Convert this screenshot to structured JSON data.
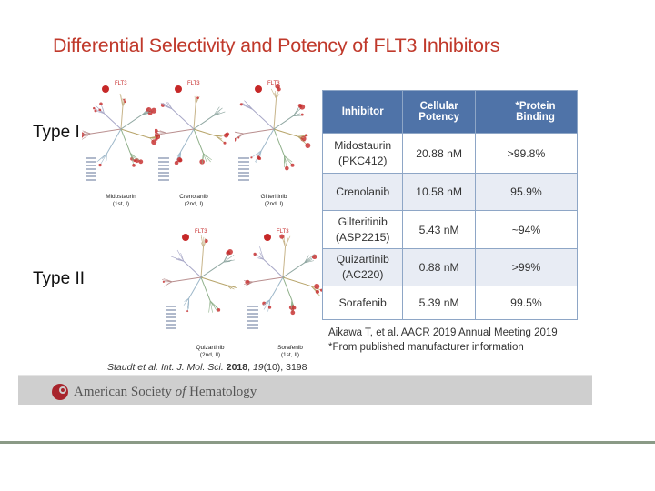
{
  "title": "Differential Selectivity and Potency of FLT3 Inhibitors",
  "type_labels": {
    "type1": "Type I",
    "type2": "Type II"
  },
  "trees": [
    {
      "label": "FLT3",
      "name": "Midostaurin",
      "class": "(1st, I)"
    },
    {
      "label": "FLT3",
      "name": "Crenolanib",
      "class": "(2nd, I)"
    },
    {
      "label": "FLT3",
      "name": "Gilteritinib",
      "class": "(2nd, I)"
    },
    {
      "label": "FLT3",
      "name": "Quizartinib",
      "class": "(2nd, II)"
    },
    {
      "label": "FLT3",
      "name": "Sorafenib",
      "class": "(1st, II)"
    }
  ],
  "table": {
    "headers": [
      "Inhibitor",
      "Cellular Potency",
      "*Protein Binding"
    ],
    "rows": [
      {
        "inhibitor_line1": "Midostaurin",
        "inhibitor_line2": "(PKC412)",
        "potency": "20.88 nM",
        "binding": ">99.8%"
      },
      {
        "inhibitor_line1": "Crenolanib",
        "inhibitor_line2": "",
        "potency": "10.58 nM",
        "binding": "95.9%"
      },
      {
        "inhibitor_line1": "Gilteritinib",
        "inhibitor_line2": "(ASP2215)",
        "potency": "5.43 nM",
        "binding": "~94%"
      },
      {
        "inhibitor_line1": "Quizartinib",
        "inhibitor_line2": "(AC220)",
        "potency": "0.88 nM",
        "binding": ">99%"
      },
      {
        "inhibitor_line1": "Sorafenib",
        "inhibitor_line2": "",
        "potency": "5.39 nM",
        "binding": "99.5%"
      }
    ]
  },
  "references": {
    "aacr": "Aikawa T, et al. AACR 2019 Annual Meeting 2019",
    "manufacturer": "*From published manufacturer information",
    "staudt_authors": "Staudt et al. Int. J. Mol. Sci.",
    "staudt_year": "2018",
    "staudt_volume": "19",
    "staudt_rest": "(10), 3198"
  },
  "footer": {
    "org_prefix": "American Society ",
    "org_of": "of",
    "org_suffix": " Hematology"
  },
  "colors": {
    "title": "#c0392b",
    "table_header": "#4f73a8",
    "table_border": "#8ea6c6",
    "table_alt_row": "#e8ecf4",
    "footer_bar": "#cfcfcf",
    "hit_red": "#c62828"
  }
}
